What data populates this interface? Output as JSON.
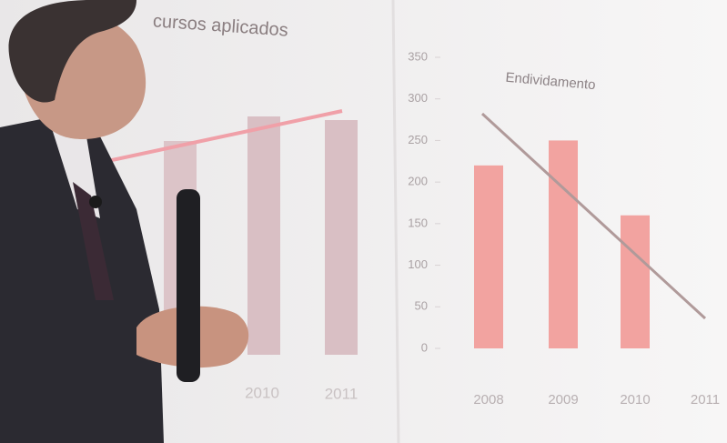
{
  "slide": {
    "left_title": "cursos aplicados",
    "left_labels": [
      "2010",
      "2011"
    ]
  },
  "chart_data": {
    "type": "bar",
    "title": "Endividamento",
    "categories": [
      "2008",
      "2009",
      "2010",
      "2011"
    ],
    "values": [
      220,
      250,
      160,
      null
    ],
    "color": "#f2a3a0",
    "ylim": [
      0,
      350
    ],
    "yticks": [
      0,
      50,
      100,
      150,
      200,
      250,
      300,
      350
    ]
  }
}
